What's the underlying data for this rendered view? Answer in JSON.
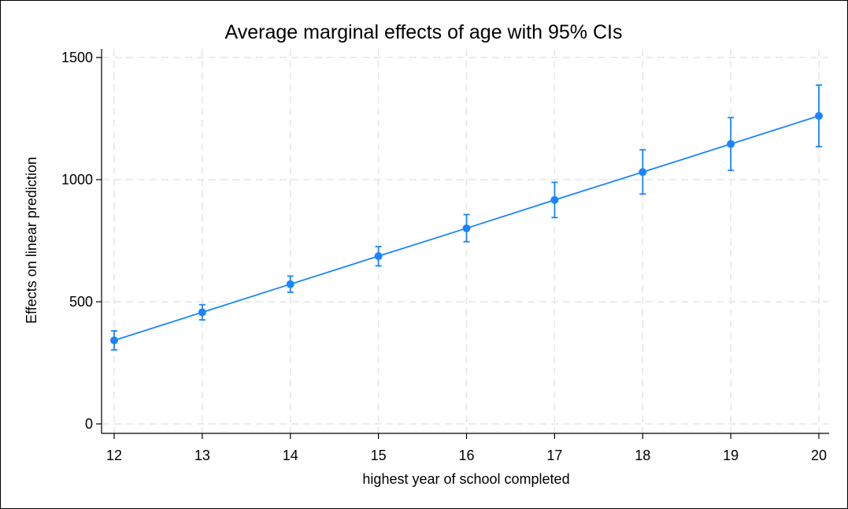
{
  "chart_data": {
    "type": "line",
    "title": "Average marginal effects of age with 95% CIs",
    "xlabel": "highest year of school completed",
    "ylabel": "Effects on linear prediction",
    "x": [
      12,
      13,
      14,
      15,
      16,
      17,
      18,
      19,
      20
    ],
    "xticks": [
      "12",
      "13",
      "14",
      "15",
      "16",
      "17",
      "18",
      "19",
      "20"
    ],
    "yticks": [
      "0",
      "500",
      "1000",
      "1500"
    ],
    "ytick_values": [
      0,
      500,
      1000,
      1500
    ],
    "ylim": [
      0,
      1500
    ],
    "xlim": [
      12,
      20
    ],
    "grid": true,
    "series": [
      {
        "values": [
          342,
          457,
          572,
          687,
          801,
          917,
          1031,
          1146,
          1261
        ],
        "ci_lower": [
          303,
          426,
          539,
          647,
          746,
          845,
          941,
          1038,
          1135
        ],
        "ci_upper": [
          381,
          488,
          605,
          726,
          857,
          989,
          1122,
          1254,
          1387
        ],
        "color": "#1a85ff"
      }
    ]
  }
}
